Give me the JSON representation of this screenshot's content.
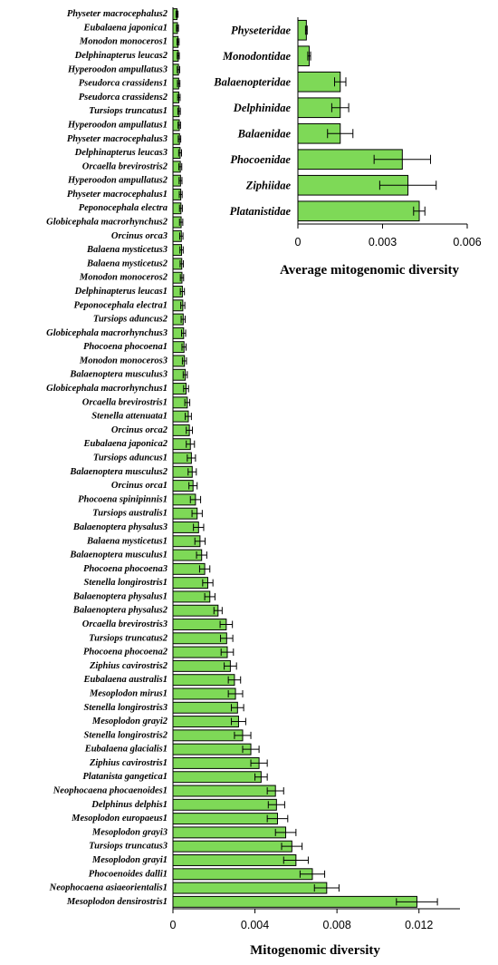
{
  "chart_data": [
    {
      "type": "bar",
      "orientation": "horizontal",
      "xlabel": "Mitogenomic diversity",
      "xlim": [
        0,
        0.014
      ],
      "xticks": [
        "0",
        "0.004",
        "0.008",
        "0.012"
      ],
      "xtick_values": [
        0,
        0.004,
        0.008,
        0.012
      ],
      "bar_color": "#7ed957",
      "grid": false,
      "error_bars": true,
      "categories": [
        "Physeter macrocephalus2",
        "Eubalaena japonica1",
        "Monodon monoceros1",
        "Delphinapterus leucas2",
        "Hyperoodon ampullatus3",
        "Pseudorca crassidens1",
        "Pseudorca crassidens2",
        "Tursiops truncatus1",
        "Hyperoodon ampullatus1",
        "Physeter macrocephalus3",
        "Delphinapterus leucas3",
        "Orcaella brevirostris2",
        "Hyperoodon ampullatus2",
        "Physeter macrocephalus1",
        "Peponocephala electra",
        "Globicephala macrorhynchus2",
        "Orcinus orca3",
        "Balaena mysticetus3",
        "Balaena mysticetus2",
        "Monodon monoceros2",
        "Delphinapterus leucas1",
        "Peponocephala electra1",
        "Tursiops aduncus2",
        "Globicephala macrorhynchus3",
        "Phocoena phocoena1",
        "Monodon monoceros3",
        "Balaenoptera musculus3",
        "Globicephala macrorhynchus1",
        "Orcaella brevirostris1",
        "Stenella attenuata1",
        "Orcinus orca2",
        "Eubalaena japonica2",
        "Tursiops aduncus1",
        "Balaenoptera musculus2",
        "Orcinus orca1",
        "Phocoena spinipinnis1",
        "Tursiops australis1",
        "Balaenoptera physalus3",
        "Balaena mysticetus1",
        "Balaenoptera musculus1",
        "Phocoena phocoena3",
        "Stenella longirostris1",
        "Balaenoptera physalus1",
        "Balaenoptera physalus2",
        "Orcaella brevirostris3",
        "Tursiops truncatus2",
        "Phocoena phocoena2",
        "Ziphius cavirostris2",
        "Eubalaena australis1",
        "Mesoplodon mirus1",
        "Stenella longirostris3",
        "Mesoplodon grayi2",
        "Stenella longirostris2",
        "Eubalaena glacialis1",
        "Ziphius cavirostris1",
        "Platanista gangetica1",
        "Neophocaena phocaenoides1",
        "Delphinus delphis1",
        "Mesoplodon europaeus1",
        "Mesoplodon grayi3",
        "Tursiops truncatus3",
        "Mesoplodon grayi1",
        "Phocoenoides dalli1",
        "Neophocaena asiaeorientalis1",
        "Mesoplodon densirostris1"
      ],
      "values": [
        0.0002,
        0.00022,
        0.00025,
        0.00026,
        0.00027,
        0.00028,
        0.00029,
        0.0003,
        0.00031,
        0.00032,
        0.00035,
        0.00036,
        0.00037,
        0.00038,
        0.00039,
        0.0004,
        0.00041,
        0.00042,
        0.00043,
        0.00044,
        0.00046,
        0.00048,
        0.0005,
        0.00052,
        0.00054,
        0.00056,
        0.0006,
        0.00064,
        0.0007,
        0.00075,
        0.0008,
        0.00085,
        0.0009,
        0.00094,
        0.00098,
        0.0011,
        0.00118,
        0.00125,
        0.00132,
        0.0014,
        0.00155,
        0.0017,
        0.0018,
        0.0022,
        0.0026,
        0.00262,
        0.00265,
        0.0028,
        0.003,
        0.00305,
        0.00315,
        0.0032,
        0.0034,
        0.0038,
        0.0042,
        0.0043,
        0.005,
        0.00505,
        0.0051,
        0.0055,
        0.0058,
        0.006,
        0.0068,
        0.0075,
        0.0119
      ],
      "errors": [
        5e-05,
        5e-05,
        5e-05,
        5e-05,
        6e-05,
        6e-05,
        6e-05,
        6e-05,
        6e-05,
        6e-05,
        7e-05,
        7e-05,
        7e-05,
        7e-05,
        7e-05,
        8e-05,
        8e-05,
        8e-05,
        8e-05,
        8e-05,
        0.0001,
        0.0001,
        0.0001,
        0.0001,
        0.0001,
        0.0001,
        0.0001,
        0.00012,
        0.00012,
        0.00015,
        0.00015,
        0.0002,
        0.0002,
        0.0002,
        0.0002,
        0.00025,
        0.00025,
        0.00025,
        0.00025,
        0.00025,
        0.00025,
        0.00025,
        0.00025,
        0.0002,
        0.0003,
        0.0003,
        0.0003,
        0.0003,
        0.0003,
        0.00035,
        0.0003,
        0.00035,
        0.0004,
        0.0004,
        0.0004,
        0.0003,
        0.0004,
        0.0004,
        0.0005,
        0.0005,
        0.0005,
        0.0006,
        0.0006,
        0.0006,
        0.001
      ]
    },
    {
      "type": "bar",
      "orientation": "horizontal",
      "xlabel": "Average mitogenomic diversity",
      "xlim": [
        0,
        0.006
      ],
      "xticks": [
        "0",
        "0.003",
        "0.006"
      ],
      "xtick_values": [
        0,
        0.003,
        0.006
      ],
      "bar_color": "#7ed957",
      "grid": false,
      "error_bars": true,
      "categories": [
        "Physeteridae",
        "Monodontidae",
        "Balaenopteridae",
        "Delphinidae",
        "Balaenidae",
        "Phocoenidae",
        "Ziphiidae",
        "Platanistidae"
      ],
      "values": [
        0.0003,
        0.0004,
        0.0015,
        0.0015,
        0.0015,
        0.0037,
        0.0039,
        0.0043
      ],
      "errors": [
        3e-05,
        5e-05,
        0.0002,
        0.0003,
        0.00045,
        0.001,
        0.001,
        0.0002
      ]
    }
  ]
}
